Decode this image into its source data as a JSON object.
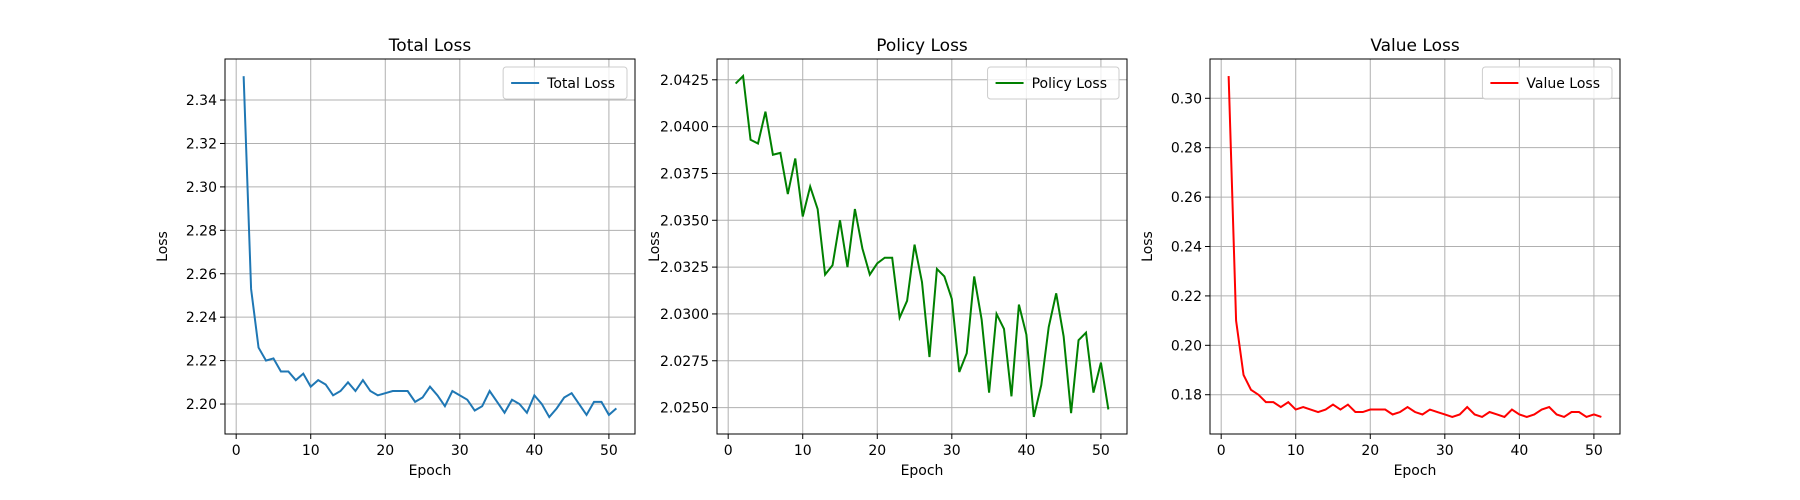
{
  "chart_data": [
    {
      "type": "line",
      "title": "Total Loss",
      "x_label": "Epoch",
      "y_label": "Loss",
      "x": [
        1,
        2,
        3,
        4,
        5,
        6,
        7,
        8,
        9,
        10,
        11,
        12,
        13,
        14,
        15,
        16,
        17,
        18,
        19,
        20,
        21,
        22,
        23,
        24,
        25,
        26,
        27,
        28,
        29,
        30,
        31,
        32,
        33,
        34,
        35,
        36,
        37,
        38,
        39,
        40,
        41,
        42,
        43,
        44,
        45,
        46,
        47,
        48,
        49,
        50,
        51
      ],
      "series": [
        {
          "name": "Total Loss",
          "color": "#1f77b4",
          "values": [
            2.351,
            2.253,
            2.226,
            2.22,
            2.221,
            2.215,
            2.215,
            2.211,
            2.214,
            2.208,
            2.211,
            2.209,
            2.204,
            2.206,
            2.21,
            2.206,
            2.211,
            2.206,
            2.204,
            2.205,
            2.206,
            2.206,
            2.206,
            2.201,
            2.203,
            2.208,
            2.204,
            2.199,
            2.206,
            2.204,
            2.202,
            2.197,
            2.199,
            2.206,
            2.201,
            2.196,
            2.202,
            2.2,
            2.196,
            2.204,
            2.2,
            2.194,
            2.198,
            2.203,
            2.205,
            2.2,
            2.195,
            2.201,
            2.201,
            2.195,
            2.198
          ]
        }
      ],
      "xlim": [
        -1.5,
        53.5
      ],
      "xticks": [
        0,
        10,
        20,
        30,
        40,
        50
      ],
      "ylim": [
        2.1862,
        2.3589
      ],
      "yticks": [
        {
          "value": 2.2,
          "label": "2.20"
        },
        2.22,
        2.24,
        2.26,
        2.28,
        {
          "value": 2.3,
          "label": "2.30"
        },
        2.32,
        2.34
      ],
      "grid": true,
      "legend": "upper right"
    },
    {
      "type": "line",
      "title": "Policy Loss",
      "x_label": "Epoch",
      "y_label": "Loss",
      "x": [
        1,
        2,
        3,
        4,
        5,
        6,
        7,
        8,
        9,
        10,
        11,
        12,
        13,
        14,
        15,
        16,
        17,
        18,
        19,
        20,
        21,
        22,
        23,
        24,
        25,
        26,
        27,
        28,
        29,
        30,
        31,
        32,
        33,
        34,
        35,
        36,
        37,
        38,
        39,
        40,
        41,
        42,
        43,
        44,
        45,
        46,
        47,
        48,
        49,
        50,
        51
      ],
      "series": [
        {
          "name": "Policy Loss",
          "color": "#008000",
          "values": [
            2.0423,
            2.0427,
            2.0393,
            2.0391,
            2.0408,
            2.0385,
            2.0386,
            2.0364,
            2.0383,
            2.0352,
            2.0368,
            2.0356,
            2.0321,
            2.0326,
            2.035,
            2.0325,
            2.0356,
            2.0335,
            2.0321,
            2.0327,
            2.033,
            2.033,
            2.0298,
            2.0307,
            2.0337,
            2.0317,
            2.0277,
            2.0324,
            2.032,
            2.0308,
            2.0269,
            2.0279,
            2.032,
            2.0297,
            2.0258,
            2.03,
            2.0292,
            2.0256,
            2.0305,
            2.0289,
            2.0245,
            2.0262,
            2.0293,
            2.0311,
            2.0288,
            2.0247,
            2.0286,
            2.029,
            2.0258,
            2.0274,
            2.0249
          ]
        }
      ],
      "xlim": [
        -1.5,
        53.5
      ],
      "xticks": [
        0,
        10,
        20,
        30,
        40,
        50
      ],
      "ylim": [
        2.02359,
        2.04361
      ],
      "yticks": [
        {
          "value": 2.025,
          "label": "2.0250"
        },
        2.0275,
        {
          "value": 2.03,
          "label": "2.0300"
        },
        2.0325,
        {
          "value": 2.035,
          "label": "2.0350"
        },
        2.0375,
        {
          "value": 2.04,
          "label": "2.0400"
        },
        2.0425
      ],
      "grid": true,
      "legend": "upper right"
    },
    {
      "type": "line",
      "title": "Value Loss",
      "x_label": "Epoch",
      "y_label": "Loss",
      "x": [
        1,
        2,
        3,
        4,
        5,
        6,
        7,
        8,
        9,
        10,
        11,
        12,
        13,
        14,
        15,
        16,
        17,
        18,
        19,
        20,
        21,
        22,
        23,
        24,
        25,
        26,
        27,
        28,
        29,
        30,
        31,
        32,
        33,
        34,
        35,
        36,
        37,
        38,
        39,
        40,
        41,
        42,
        43,
        44,
        45,
        46,
        47,
        48,
        49,
        50,
        51
      ],
      "series": [
        {
          "name": "Value Loss",
          "color": "#ff0000",
          "values": [
            0.309,
            0.21,
            0.188,
            0.182,
            0.18,
            0.177,
            0.177,
            0.175,
            0.177,
            0.174,
            0.175,
            0.174,
            0.173,
            0.174,
            0.176,
            0.174,
            0.176,
            0.173,
            0.173,
            0.174,
            0.174,
            0.174,
            0.172,
            0.173,
            0.175,
            0.173,
            0.172,
            0.174,
            0.173,
            0.172,
            0.171,
            0.172,
            0.175,
            0.172,
            0.171,
            0.173,
            0.172,
            0.171,
            0.174,
            0.172,
            0.171,
            0.172,
            0.174,
            0.175,
            0.172,
            0.171,
            0.173,
            0.173,
            0.171,
            0.172,
            0.171
          ]
        }
      ],
      "xlim": [
        -1.5,
        53.5
      ],
      "xticks": [
        0,
        10,
        20,
        30,
        40,
        50
      ],
      "ylim": [
        0.1641,
        0.3159
      ],
      "yticks": [
        0.18,
        {
          "value": 0.2,
          "label": "0.20"
        },
        0.22,
        0.24,
        0.26,
        0.28,
        {
          "value": 0.3,
          "label": "0.30"
        }
      ],
      "grid": true,
      "legend": "upper right"
    }
  ]
}
